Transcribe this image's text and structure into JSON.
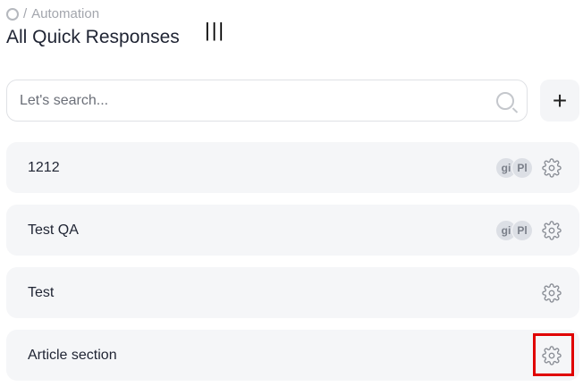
{
  "breadcrumb": {
    "section": "Automation",
    "separator": "/"
  },
  "title": "All Quick Responses",
  "bars": "|||",
  "search": {
    "placeholder": "Let's search..."
  },
  "add_label": "+",
  "items": [
    {
      "name": "1212",
      "avatars": [
        "gi",
        "Pl"
      ]
    },
    {
      "name": "Test QA",
      "avatars": [
        "gi",
        "Pl"
      ]
    },
    {
      "name": "Test",
      "avatars": []
    },
    {
      "name": "Article section",
      "avatars": []
    }
  ],
  "highlight_color": "#e00000"
}
